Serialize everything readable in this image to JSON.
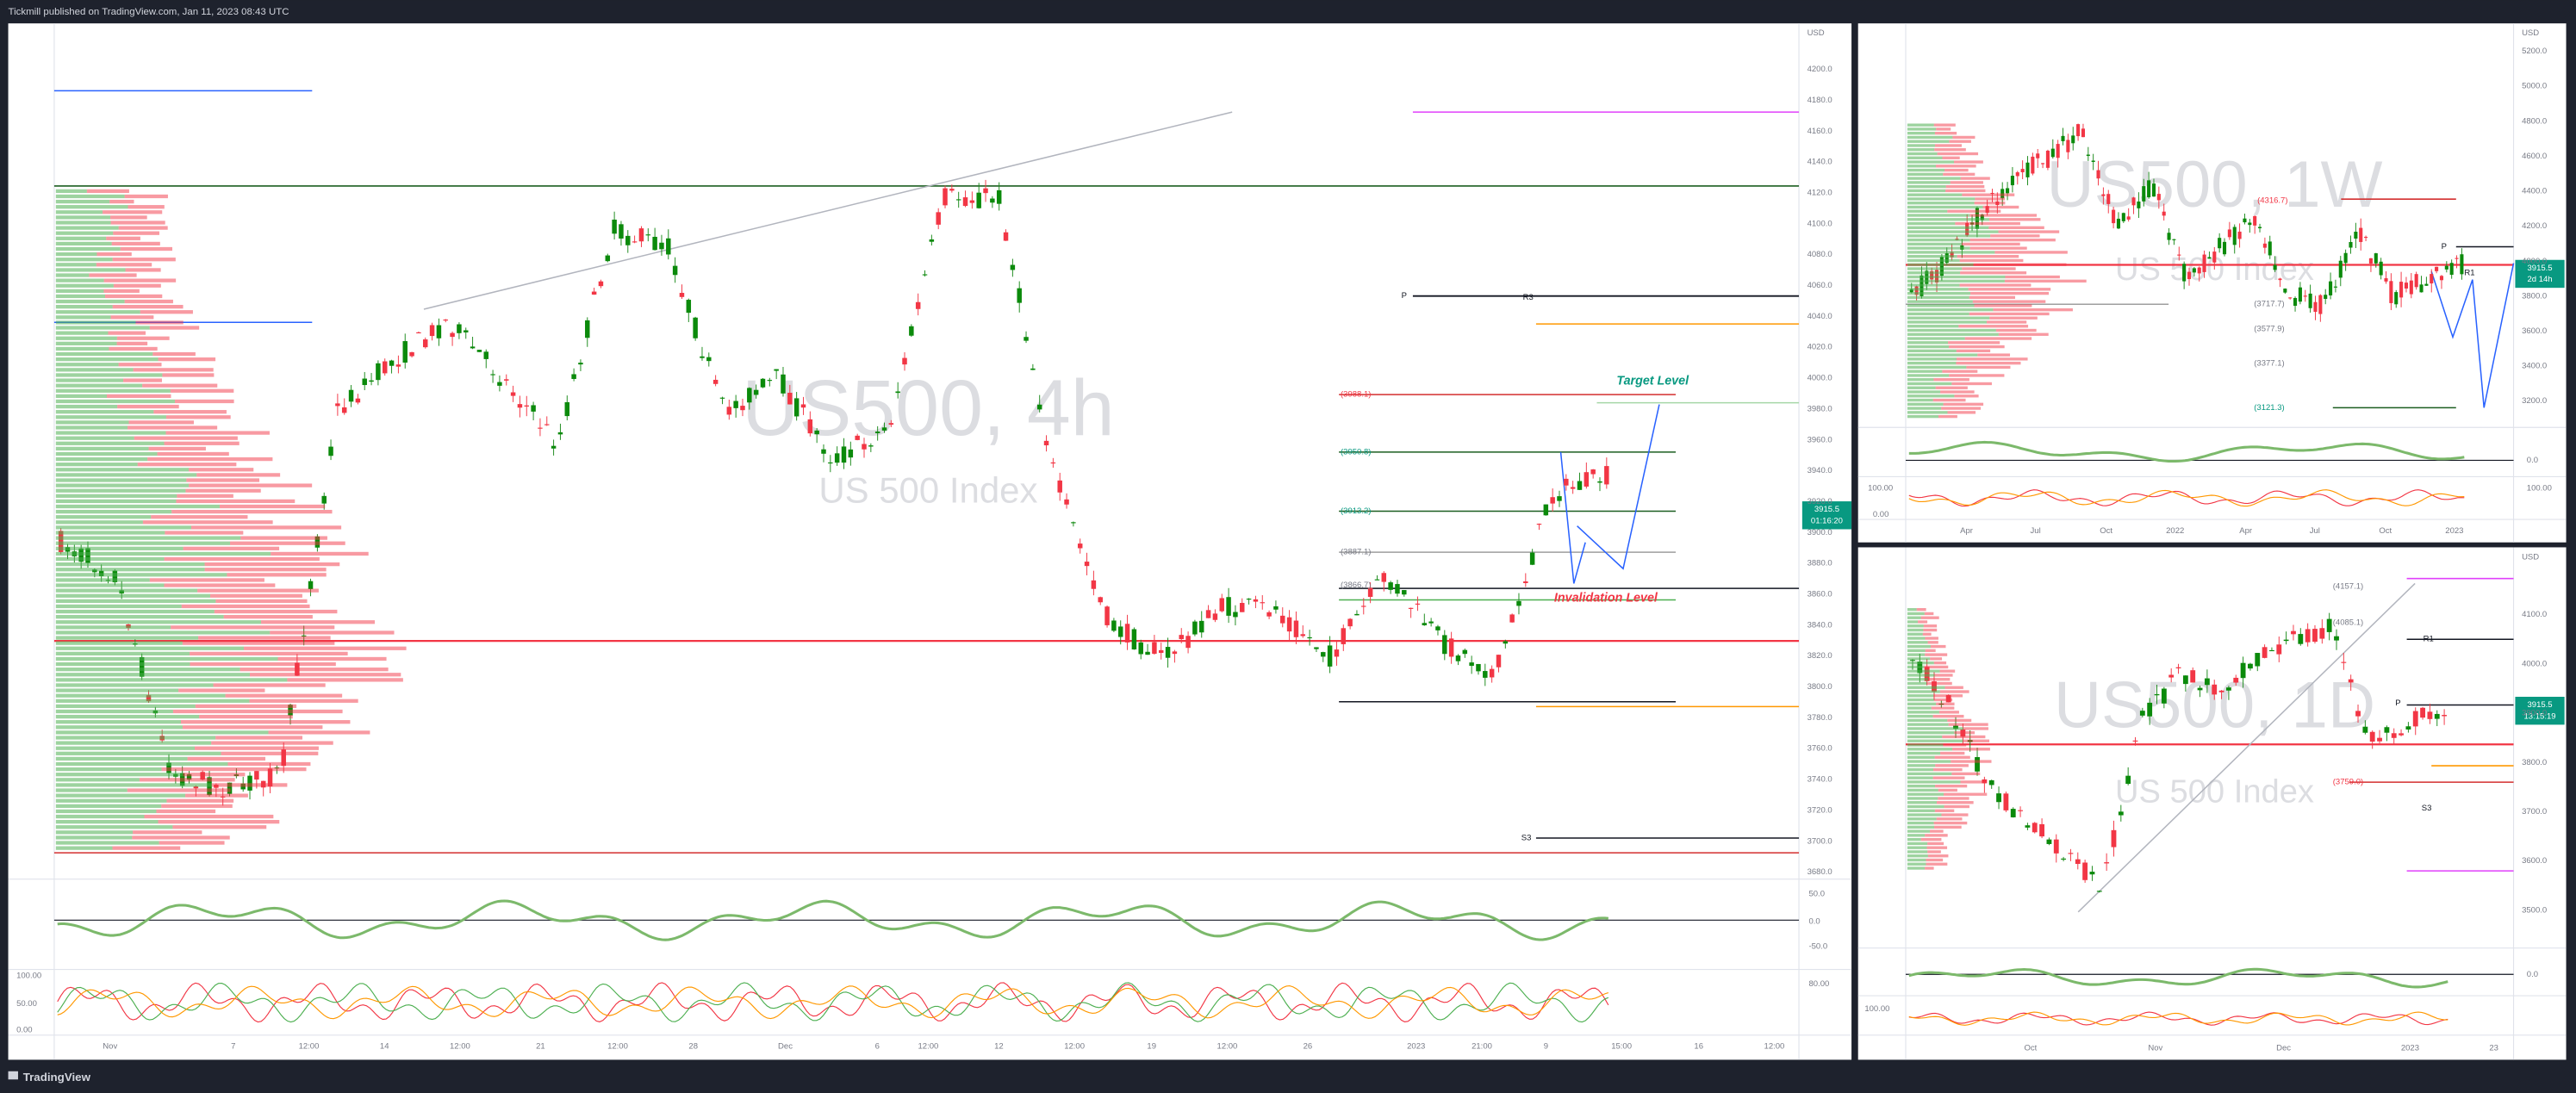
{
  "header": {
    "publisher": "Tickmill published on TradingView.com, Jan 11, 2023 08:43 UTC"
  },
  "main": {
    "watermark": "US500, 4h",
    "subtitle": "US 500 Index",
    "currency": "USD",
    "price_axis": [
      "4200.0",
      "4180.0",
      "4160.0",
      "4140.0",
      "4120.0",
      "4100.0",
      "4080.0",
      "4060.0",
      "4040.0",
      "4020.0",
      "4000.0",
      "3980.0",
      "3960.0",
      "3940.0",
      "3920.0",
      "3900.0",
      "3880.0",
      "3860.0",
      "3840.0",
      "3820.0",
      "3800.0",
      "3780.0",
      "3760.0",
      "3740.0",
      "3720.0",
      "3700.0",
      "3680.0"
    ],
    "time_axis": [
      "Nov",
      "7",
      "12:00",
      "14",
      "12:00",
      "21",
      "12:00",
      "28",
      "Dec",
      "6",
      "12:00",
      "12",
      "12:00",
      "19",
      "12:00",
      "26",
      "2023",
      "21:00",
      "9",
      "15:00",
      "16",
      "12:00"
    ],
    "levels": [
      "(3988.1)",
      "(3950.8)",
      "(3913.2)",
      "(3887.1)",
      "(3866.7)"
    ],
    "target": "Target Level",
    "invalidation": "Invalidation Level",
    "pivots": [
      "P",
      "R3",
      "S3"
    ],
    "price_tag": {
      "price": "3915.5",
      "countdown": "01:16:20"
    },
    "indicator_axis": [
      "50.0",
      "0.0",
      "-50.0",
      "80.00"
    ],
    "oscillator_axis": [
      "100.00",
      "50.00",
      "0.00"
    ]
  },
  "weekly": {
    "watermark": "US500, 1W",
    "subtitle": "US 500 Index",
    "currency": "USD",
    "price_axis": [
      "5200.0",
      "5000.0",
      "4800.0",
      "4600.0",
      "4400.0",
      "4200.0",
      "4000.0",
      "3800.0",
      "3600.0",
      "3400.0",
      "3200.0"
    ],
    "time_axis": [
      "Apr",
      "Jul",
      "Oct",
      "2022",
      "Apr",
      "Jul",
      "Oct",
      "2023"
    ],
    "levels": [
      "(4316.7)",
      "(3717.7)",
      "(3577.9)",
      "(3377.1)",
      "(3121.3)"
    ],
    "pivots": [
      "P",
      "R1"
    ],
    "price_tag": {
      "price": "3915.5",
      "countdown": "2d 14h"
    },
    "indicator_axis": [
      "0.0",
      "100.00"
    ],
    "oscillator_axis": [
      "100.00",
      "0.00"
    ]
  },
  "daily": {
    "watermark": "US500, 1D",
    "subtitle": "US 500 Index",
    "currency": "USD",
    "price_axis": [
      "4100.0",
      "4000.0",
      "3900.0",
      "3800.0",
      "3700.0",
      "3600.0",
      "3500.0"
    ],
    "time_axis": [
      "Oct",
      "Nov",
      "Dec",
      "2023",
      "23"
    ],
    "levels": [
      "(4157.1)",
      "(4085.1)",
      "(3759.0)"
    ],
    "pivots": [
      "R1",
      "P",
      "S3"
    ],
    "price_tag": {
      "price": "3915.5",
      "countdown": "13:15:19"
    },
    "indicator_axis": [
      "0.0"
    ],
    "oscillator_axis": [
      "100.00"
    ]
  },
  "footer": {
    "brand": "TradingView"
  }
}
